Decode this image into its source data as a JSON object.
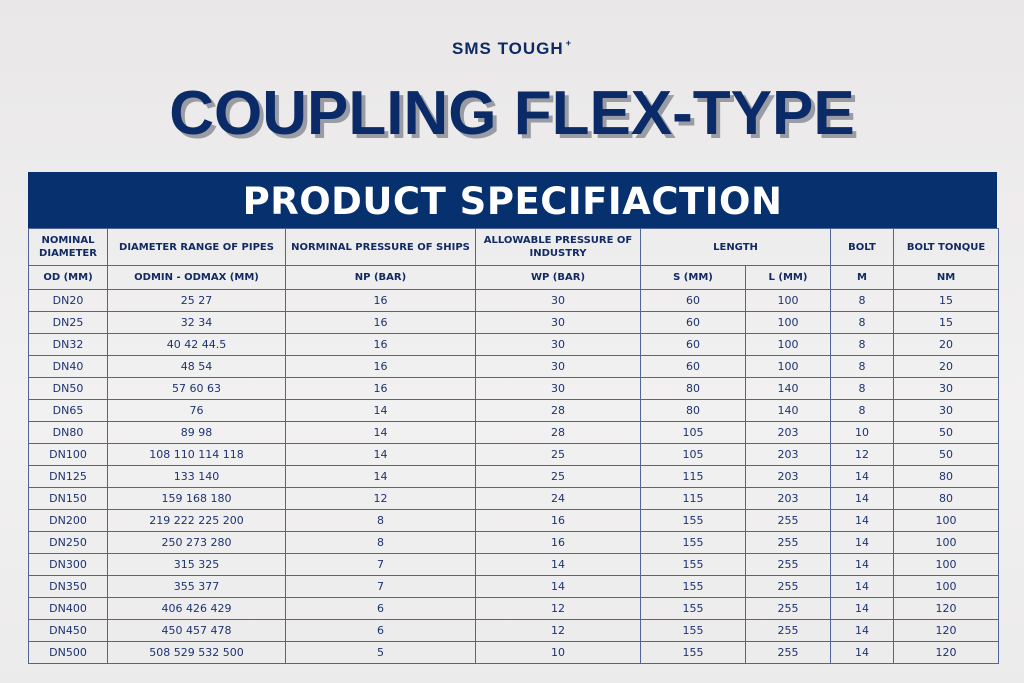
{
  "brand": {
    "name": "SMS TOUGH",
    "mark": "+"
  },
  "title": "COUPLING FLEX-TYPE",
  "banner": "PRODUCT SPECIFIACTION",
  "colors": {
    "navy": "#06306e",
    "text": "#1c3370",
    "border": "#50649a"
  },
  "header_row1": [
    {
      "label": "NOMINAL DIAMETER",
      "colspan": 1
    },
    {
      "label": "DIAMETER RANGE OF PIPES",
      "colspan": 1
    },
    {
      "label": "NORMINAL PRESSURE OF SHIPS",
      "colspan": 1
    },
    {
      "label": "ALLOWABLE PRESSURE OF INDUSTRY",
      "colspan": 1
    },
    {
      "label": "LENGTH",
      "colspan": 2
    },
    {
      "label": "BOLT",
      "colspan": 1
    },
    {
      "label": "BOLT TONQUE",
      "colspan": 1
    }
  ],
  "header_row2": [
    "OD (MM)",
    "ODMIN - ODMAX (MM)",
    "NP (BAR)",
    "WP (BAR)",
    "S (MM)",
    "L (MM)",
    "M",
    "NM"
  ],
  "rows": [
    [
      "DN20",
      "25 27",
      "16",
      "30",
      "60",
      "100",
      "8",
      "15"
    ],
    [
      "DN25",
      "32 34",
      "16",
      "30",
      "60",
      "100",
      "8",
      "15"
    ],
    [
      "DN32",
      "40 42 44.5",
      "16",
      "30",
      "60",
      "100",
      "8",
      "20"
    ],
    [
      "DN40",
      "48 54",
      "16",
      "30",
      "60",
      "100",
      "8",
      "20"
    ],
    [
      "DN50",
      "57 60 63",
      "16",
      "30",
      "80",
      "140",
      "8",
      "30"
    ],
    [
      "DN65",
      "76",
      "14",
      "28",
      "80",
      "140",
      "8",
      "30"
    ],
    [
      "DN80",
      "89 98",
      "14",
      "28",
      "105",
      "203",
      "10",
      "50"
    ],
    [
      "DN100",
      "108 110 114 118",
      "14",
      "25",
      "105",
      "203",
      "12",
      "50"
    ],
    [
      "DN125",
      "133 140",
      "14",
      "25",
      "115",
      "203",
      "14",
      "80"
    ],
    [
      "DN150",
      "159 168 180",
      "12",
      "24",
      "115",
      "203",
      "14",
      "80"
    ],
    [
      "DN200",
      "219 222 225 200",
      "8",
      "16",
      "155",
      "255",
      "14",
      "100"
    ],
    [
      "DN250",
      "250 273 280",
      "8",
      "16",
      "155",
      "255",
      "14",
      "100"
    ],
    [
      "DN300",
      "315 325",
      "7",
      "14",
      "155",
      "255",
      "14",
      "100"
    ],
    [
      "DN350",
      "355 377",
      "7",
      "14",
      "155",
      "255",
      "14",
      "100"
    ],
    [
      "DN400",
      "406 426 429",
      "6",
      "12",
      "155",
      "255",
      "14",
      "120"
    ],
    [
      "DN450",
      "450 457 478",
      "6",
      "12",
      "155",
      "255",
      "14",
      "120"
    ],
    [
      "DN500",
      "508 529 532 500",
      "5",
      "10",
      "155",
      "255",
      "14",
      "120"
    ]
  ]
}
